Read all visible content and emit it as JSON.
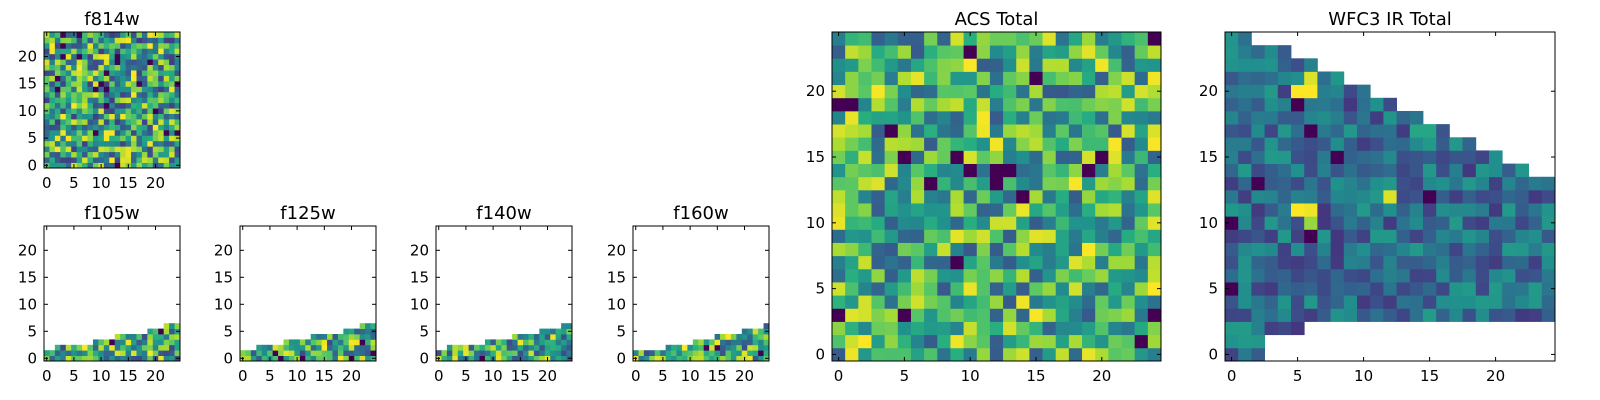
{
  "colormap": "viridis",
  "colors": {
    "viridis_low": "#440154",
    "viridis_mid": "#21918c",
    "viridis_high": "#fde725",
    "frame": "#000000",
    "background": "#ffffff"
  },
  "chart_data": [
    {
      "type": "heatmap",
      "title": "f814w",
      "grid_size": 25,
      "xlim": [
        -0.5,
        24.5
      ],
      "ylim": [
        -0.5,
        24.5
      ],
      "xticks": [
        0,
        5,
        10,
        15,
        20
      ],
      "yticks": [
        0,
        5,
        10,
        15,
        20
      ],
      "coverage": "full",
      "value_range": [
        0.15,
        1.0
      ],
      "grid": false
    },
    {
      "type": "heatmap",
      "title": "f105w",
      "grid_size": 25,
      "xlim": [
        -0.5,
        24.5
      ],
      "ylim": [
        -0.5,
        24.5
      ],
      "xticks": [
        0,
        5,
        10,
        15,
        20
      ],
      "yticks": [
        0,
        5,
        10,
        15,
        20
      ],
      "coverage_top_row": [
        1,
        1,
        2,
        2,
        2,
        2,
        2,
        2,
        2,
        3,
        3,
        3,
        3,
        4,
        4,
        4,
        4,
        4,
        4,
        5,
        5,
        5,
        6,
        6,
        6
      ],
      "value_range": [
        0.2,
        1.0
      ],
      "grid": false
    },
    {
      "type": "heatmap",
      "title": "f125w",
      "grid_size": 25,
      "xlim": [
        -0.5,
        24.5
      ],
      "ylim": [
        -0.5,
        24.5
      ],
      "xticks": [
        0,
        5,
        10,
        15,
        20
      ],
      "yticks": [
        0,
        5,
        10,
        15,
        20
      ],
      "coverage_top_row": [
        1,
        1,
        1,
        2,
        2,
        2,
        2,
        2,
        3,
        3,
        3,
        3,
        3,
        4,
        4,
        4,
        4,
        4,
        4,
        5,
        5,
        5,
        6,
        6,
        6
      ],
      "value_range": [
        0.2,
        1.0
      ],
      "grid": false
    },
    {
      "type": "heatmap",
      "title": "f140w",
      "grid_size": 25,
      "xlim": [
        -0.5,
        24.5
      ],
      "ylim": [
        -0.5,
        24.5
      ],
      "xticks": [
        0,
        5,
        10,
        15,
        20
      ],
      "yticks": [
        0,
        5,
        10,
        15,
        20
      ],
      "coverage_top_row": [
        1,
        1,
        2,
        2,
        2,
        2,
        2,
        2,
        2,
        3,
        3,
        3,
        3,
        3,
        4,
        4,
        4,
        4,
        4,
        5,
        5,
        5,
        5,
        6,
        6
      ],
      "value_range": [
        0.2,
        1.0
      ],
      "grid": false
    },
    {
      "type": "heatmap",
      "title": "f160w",
      "grid_size": 25,
      "xlim": [
        -0.5,
        24.5
      ],
      "ylim": [
        -0.5,
        24.5
      ],
      "xticks": [
        0,
        5,
        10,
        15,
        20
      ],
      "yticks": [
        0,
        5,
        10,
        15,
        20
      ],
      "coverage_top_row": [
        1,
        1,
        1,
        1,
        1,
        1,
        2,
        2,
        2,
        2,
        2,
        3,
        3,
        3,
        3,
        4,
        4,
        4,
        4,
        4,
        5,
        5,
        5,
        5,
        6
      ],
      "value_range": [
        0.2,
        1.0
      ],
      "grid": false
    },
    {
      "type": "heatmap",
      "title": "ACS Total",
      "grid_size": 25,
      "xlim": [
        -0.5,
        24.5
      ],
      "ylim": [
        -0.5,
        24.5
      ],
      "xticks": [
        0,
        5,
        10,
        15,
        20
      ],
      "yticks": [
        0,
        5,
        10,
        15,
        20
      ],
      "coverage": "full",
      "value_range": [
        0.25,
        1.0
      ],
      "grid": false
    },
    {
      "type": "heatmap",
      "title": "WFC3 IR Total",
      "grid_size": 25,
      "xlim": [
        -0.5,
        24.5
      ],
      "ylim": [
        -0.5,
        24.5
      ],
      "xticks": [
        0,
        5,
        10,
        15,
        20
      ],
      "yticks": [
        0,
        5,
        10,
        15,
        20
      ],
      "coverage_top_row": [
        24,
        24,
        23,
        23,
        23,
        22,
        22,
        21,
        21,
        20,
        20,
        19,
        19,
        18,
        18,
        17,
        17,
        16,
        16,
        15,
        15,
        14,
        14,
        13,
        13
      ],
      "coverage_bottom_row": [
        0,
        0,
        0,
        2,
        2,
        2,
        3,
        3,
        3,
        3,
        3,
        3,
        3,
        3,
        3,
        3,
        3,
        3,
        3,
        3,
        3,
        3,
        3,
        3,
        3
      ],
      "value_range": [
        0.15,
        0.55
      ],
      "highlights": [
        {
          "x": 5,
          "y": 20,
          "value": 1.0
        },
        {
          "x": 6,
          "y": 20,
          "value": 1.0
        },
        {
          "x": 6,
          "y": 21,
          "value": 0.95
        },
        {
          "x": 5,
          "y": 11,
          "value": 1.0
        },
        {
          "x": 6,
          "y": 11,
          "value": 0.98
        },
        {
          "x": 6,
          "y": 10,
          "value": 0.85
        },
        {
          "x": 12,
          "y": 12,
          "value": 0.95
        },
        {
          "x": 14,
          "y": 17,
          "value": 0.6
        },
        {
          "x": 15,
          "y": 17,
          "value": 0.6
        }
      ],
      "grid": false
    }
  ]
}
